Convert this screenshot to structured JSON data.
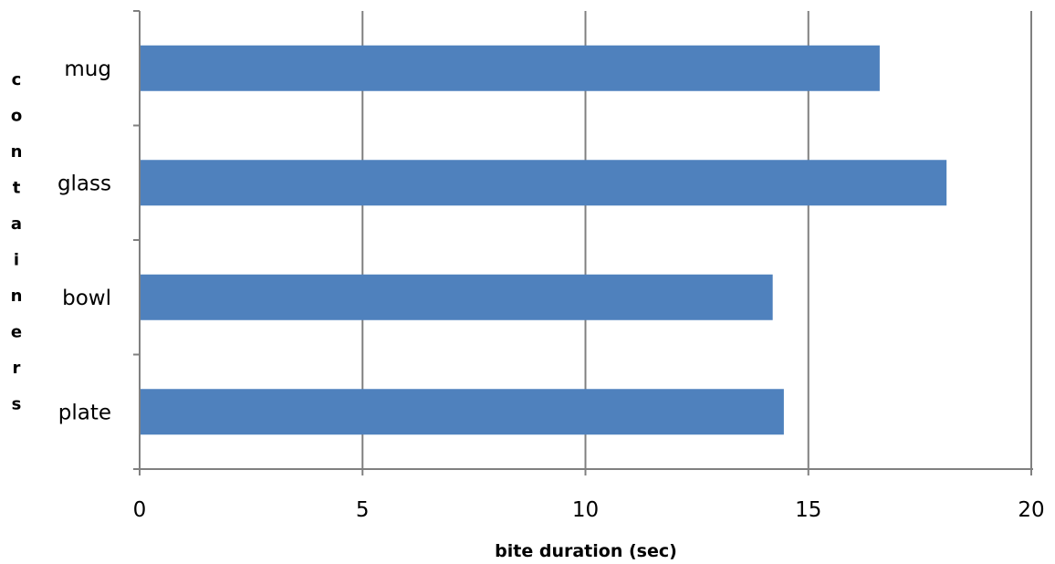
{
  "chart_data": {
    "type": "bar",
    "orientation": "horizontal",
    "categories": [
      "mug",
      "glass",
      "bowl",
      "plate"
    ],
    "values": [
      16.6,
      18.1,
      14.2,
      14.45
    ],
    "xlabel": "bite duration (sec)",
    "ylabel": "containers",
    "xlim": [
      0,
      20
    ],
    "xticks": [
      "0",
      "5",
      "10",
      "15",
      "20"
    ],
    "grid": true,
    "legend": "none",
    "colors": {
      "bar": "#4f81bd",
      "grid": "#808080",
      "axis": "#808080"
    }
  }
}
